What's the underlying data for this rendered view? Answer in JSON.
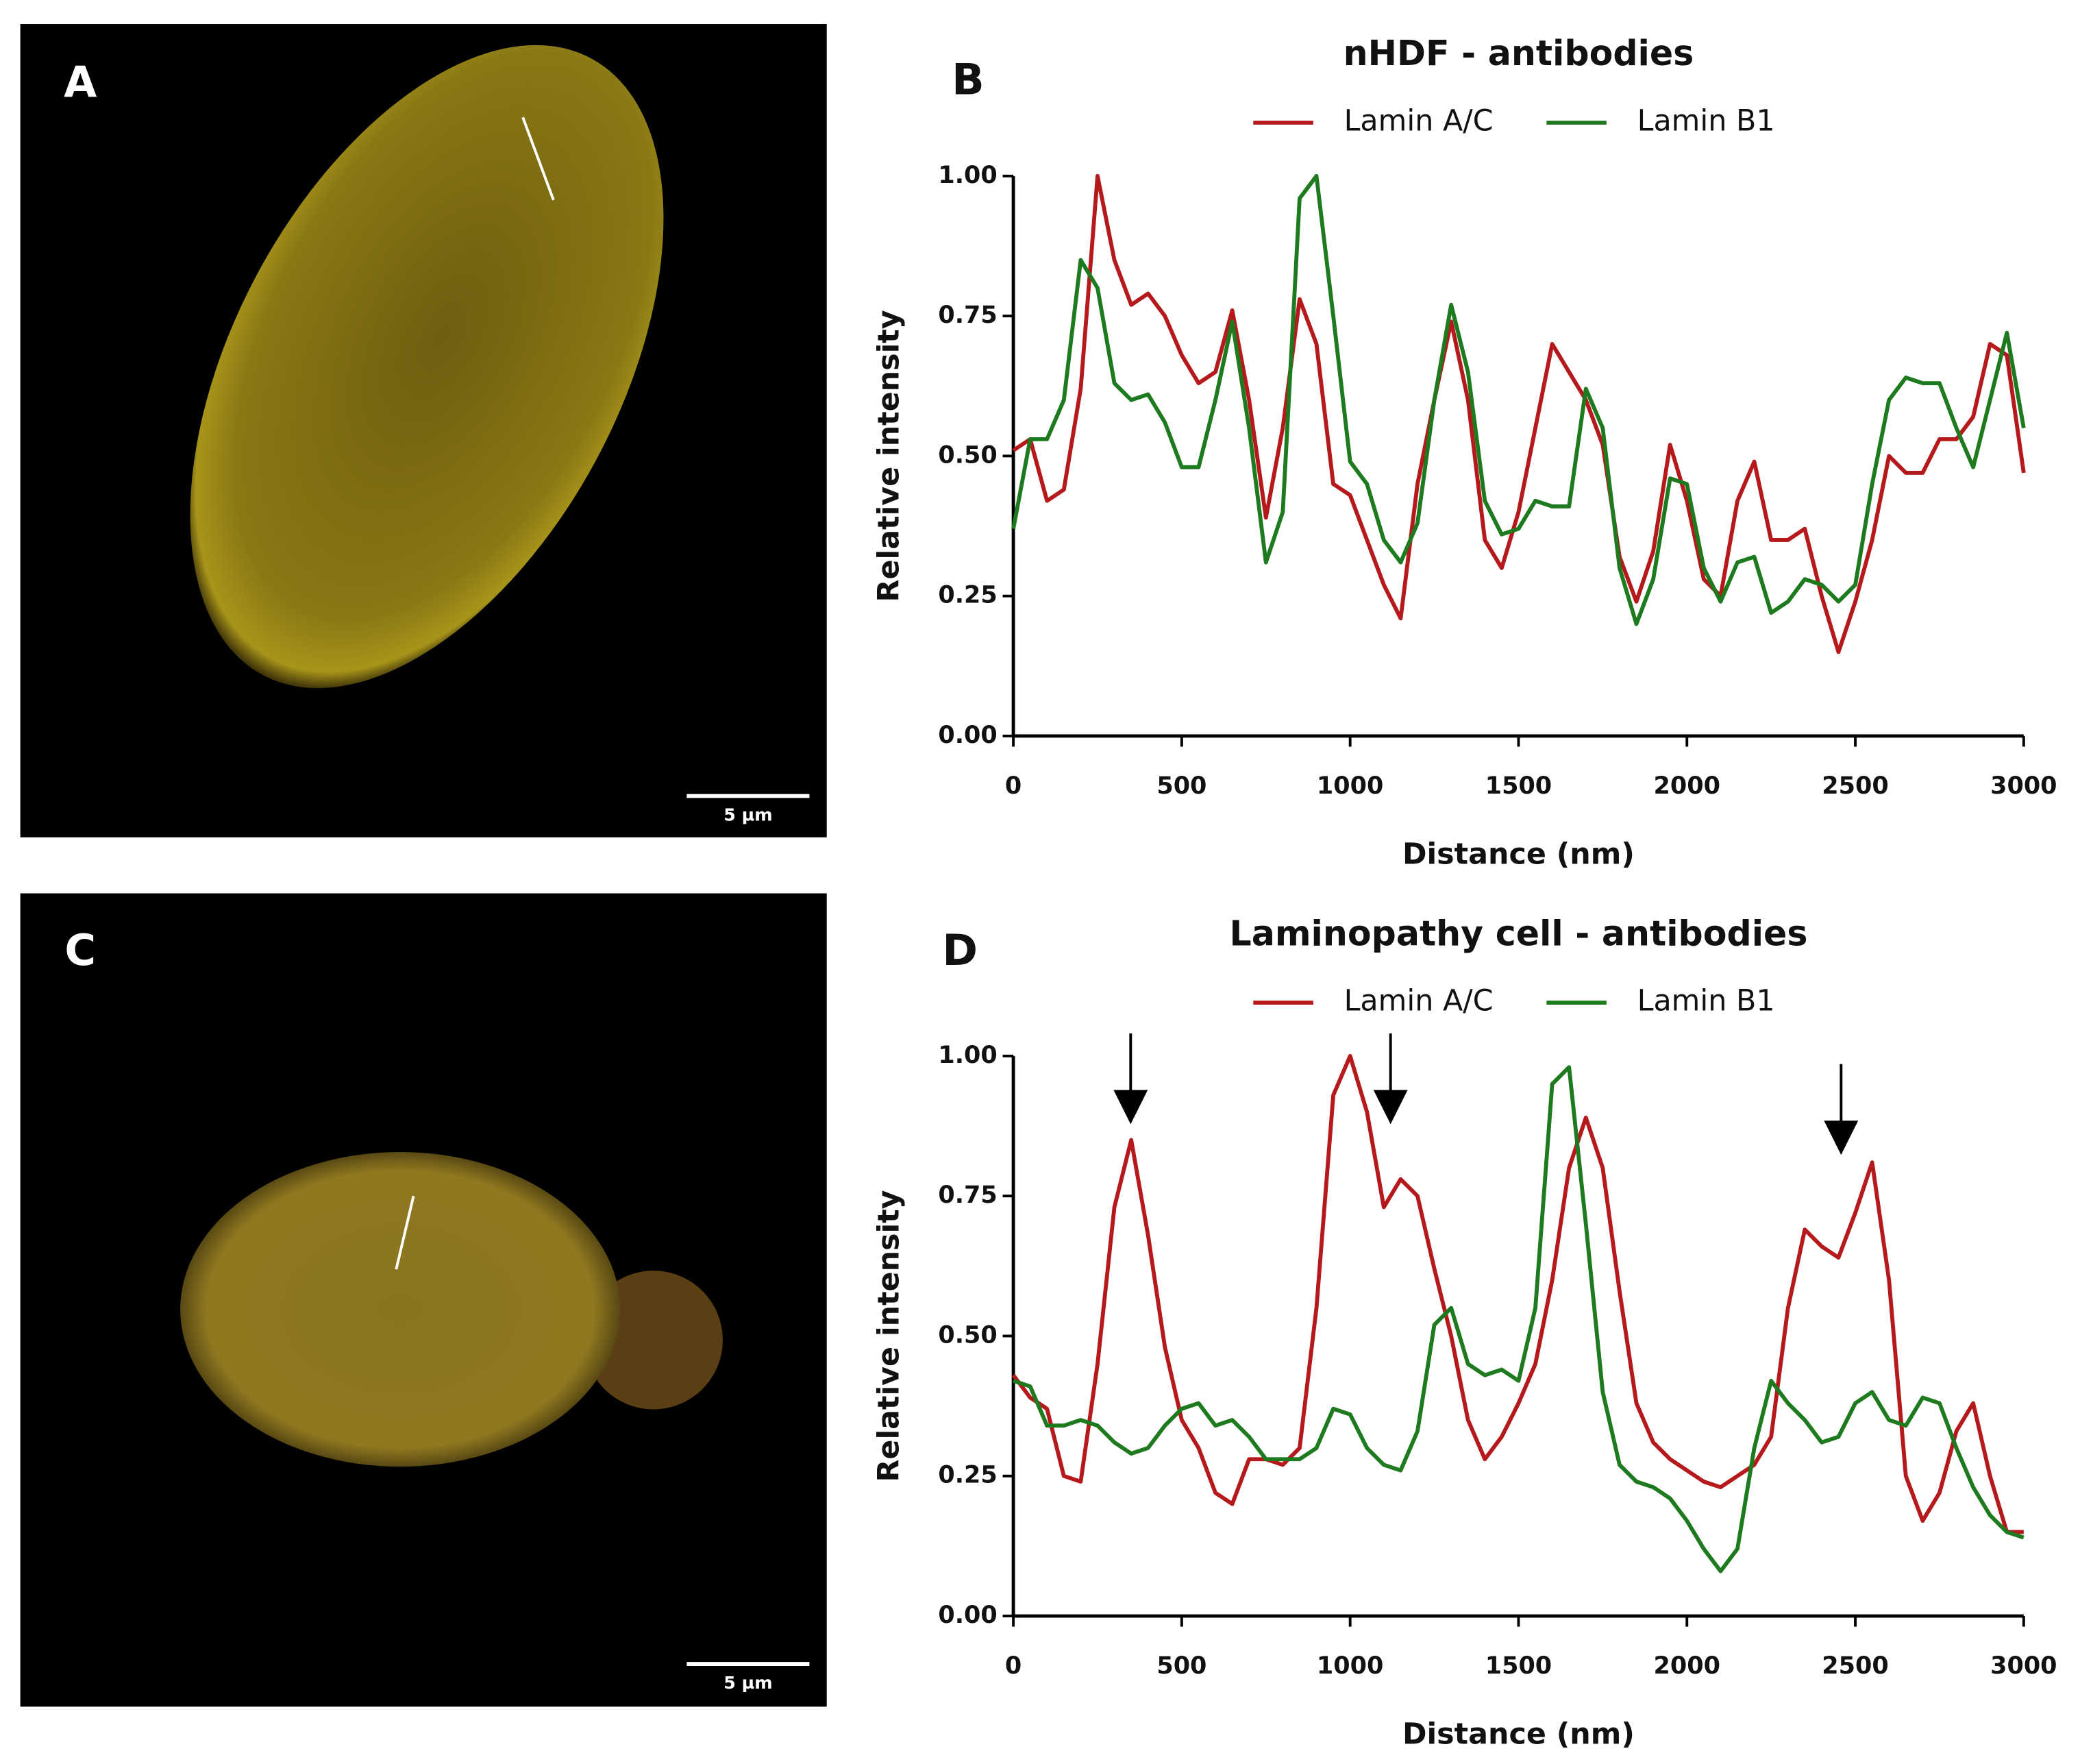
{
  "images": [
    {
      "label": "A",
      "scale_bar": "5 µm"
    },
    {
      "label": "C",
      "scale_bar": "5 µm"
    }
  ],
  "chart_data": [
    {
      "type": "line",
      "panel_label": "B",
      "title": "nHDF - antibodies",
      "x_label": "Distance (nm)",
      "y_label": "Relative intensity",
      "xlim": [
        0,
        3000
      ],
      "xticks": [
        0,
        500,
        1000,
        1500,
        2000,
        2500,
        3000
      ],
      "ylim": [
        0,
        1
      ],
      "yticks": [
        {
          "value": 0,
          "label": "0.00"
        },
        {
          "value": 0.25,
          "label": "0.25"
        },
        {
          "value": 0.5,
          "label": "0.50"
        },
        {
          "value": 0.75,
          "label": "0.75"
        },
        {
          "value": 1,
          "label": "1.00"
        }
      ],
      "x": [
        0,
        50,
        100,
        150,
        200,
        250,
        300,
        350,
        400,
        450,
        500,
        550,
        600,
        650,
        700,
        750,
        800,
        850,
        900,
        950,
        1000,
        1050,
        1100,
        1150,
        1200,
        1250,
        1300,
        1350,
        1400,
        1450,
        1500,
        1550,
        1600,
        1650,
        1700,
        1750,
        1800,
        1850,
        1900,
        1950,
        2000,
        2050,
        2100,
        2150,
        2200,
        2250,
        2300,
        2350,
        2400,
        2450,
        2500,
        2550,
        2600,
        2650,
        2700,
        2750,
        2800,
        2850,
        2900,
        2950,
        3000
      ],
      "series": [
        {
          "name": "Lamin A/C",
          "color": "#b5191c",
          "values": [
            0.51,
            0.53,
            0.42,
            0.44,
            0.62,
            1.0,
            0.85,
            0.77,
            0.79,
            0.75,
            0.68,
            0.63,
            0.65,
            0.76,
            0.6,
            0.39,
            0.55,
            0.78,
            0.7,
            0.45,
            0.43,
            0.35,
            0.27,
            0.21,
            0.45,
            0.6,
            0.74,
            0.6,
            0.35,
            0.3,
            0.4,
            0.55,
            0.7,
            0.65,
            0.6,
            0.52,
            0.32,
            0.24,
            0.33,
            0.52,
            0.42,
            0.28,
            0.25,
            0.42,
            0.49,
            0.35,
            0.35,
            0.37,
            0.25,
            0.15,
            0.24,
            0.35,
            0.5,
            0.47,
            0.47,
            0.53,
            0.53,
            0.57,
            0.7,
            0.68,
            0.47
          ]
        },
        {
          "name": "Lamin B1",
          "color": "#1e7a1e",
          "values": [
            0.37,
            0.53,
            0.53,
            0.6,
            0.85,
            0.8,
            0.63,
            0.6,
            0.61,
            0.56,
            0.48,
            0.48,
            0.6,
            0.74,
            0.55,
            0.31,
            0.4,
            0.96,
            1.0,
            0.75,
            0.49,
            0.45,
            0.35,
            0.31,
            0.38,
            0.6,
            0.77,
            0.65,
            0.42,
            0.36,
            0.37,
            0.42,
            0.41,
            0.41,
            0.62,
            0.55,
            0.3,
            0.2,
            0.28,
            0.46,
            0.45,
            0.3,
            0.24,
            0.31,
            0.32,
            0.22,
            0.24,
            0.28,
            0.27,
            0.24,
            0.27,
            0.45,
            0.6,
            0.64,
            0.63,
            0.63,
            0.55,
            0.48,
            0.6,
            0.72,
            0.55
          ]
        }
      ]
    },
    {
      "type": "line",
      "panel_label": "D",
      "title": "Laminopathy cell - antibodies",
      "x_label": "Distance (nm)",
      "y_label": "Relative intensity",
      "xlim": [
        0,
        3000
      ],
      "xticks": [
        0,
        500,
        1000,
        1500,
        2000,
        2500,
        3000
      ],
      "ylim": [
        0,
        1
      ],
      "yticks": [
        {
          "value": 0,
          "label": "0.00"
        },
        {
          "value": 0.25,
          "label": "0.25"
        },
        {
          "value": 0.5,
          "label": "0.50"
        },
        {
          "value": 0.75,
          "label": "0.75"
        },
        {
          "value": 1,
          "label": "1.00"
        }
      ],
      "x": [
        0,
        50,
        100,
        150,
        200,
        250,
        300,
        350,
        400,
        450,
        500,
        550,
        600,
        650,
        700,
        750,
        800,
        850,
        900,
        950,
        1000,
        1050,
        1100,
        1150,
        1200,
        1250,
        1300,
        1350,
        1400,
        1450,
        1500,
        1550,
        1600,
        1650,
        1700,
        1750,
        1800,
        1850,
        1900,
        1950,
        2000,
        2050,
        2100,
        2150,
        2200,
        2250,
        2300,
        2350,
        2400,
        2450,
        2500,
        2550,
        2600,
        2650,
        2700,
        2750,
        2800,
        2850,
        2900,
        2950,
        3000
      ],
      "series": [
        {
          "name": "Lamin A/C",
          "color": "#b5191c",
          "values": [
            0.43,
            0.39,
            0.37,
            0.25,
            0.24,
            0.45,
            0.73,
            0.85,
            0.68,
            0.48,
            0.35,
            0.3,
            0.22,
            0.2,
            0.28,
            0.28,
            0.27,
            0.3,
            0.55,
            0.93,
            1.0,
            0.9,
            0.73,
            0.78,
            0.75,
            0.62,
            0.5,
            0.35,
            0.28,
            0.32,
            0.38,
            0.45,
            0.6,
            0.8,
            0.89,
            0.8,
            0.58,
            0.38,
            0.31,
            0.28,
            0.26,
            0.24,
            0.23,
            0.25,
            0.27,
            0.32,
            0.55,
            0.69,
            0.66,
            0.64,
            0.72,
            0.81,
            0.6,
            0.25,
            0.17,
            0.22,
            0.33,
            0.38,
            0.25,
            0.15,
            0.15
          ]
        },
        {
          "name": "Lamin B1",
          "color": "#1e7a1e",
          "values": [
            0.42,
            0.41,
            0.34,
            0.34,
            0.35,
            0.34,
            0.31,
            0.29,
            0.3,
            0.34,
            0.37,
            0.38,
            0.34,
            0.35,
            0.32,
            0.28,
            0.28,
            0.28,
            0.3,
            0.37,
            0.36,
            0.3,
            0.27,
            0.26,
            0.33,
            0.52,
            0.55,
            0.45,
            0.43,
            0.44,
            0.42,
            0.55,
            0.95,
            0.98,
            0.7,
            0.4,
            0.27,
            0.24,
            0.23,
            0.21,
            0.17,
            0.12,
            0.08,
            0.12,
            0.3,
            0.42,
            0.38,
            0.35,
            0.31,
            0.32,
            0.38,
            0.4,
            0.35,
            0.34,
            0.39,
            0.38,
            0.3,
            0.23,
            0.18,
            0.15,
            0.14
          ]
        }
      ]
    }
  ]
}
